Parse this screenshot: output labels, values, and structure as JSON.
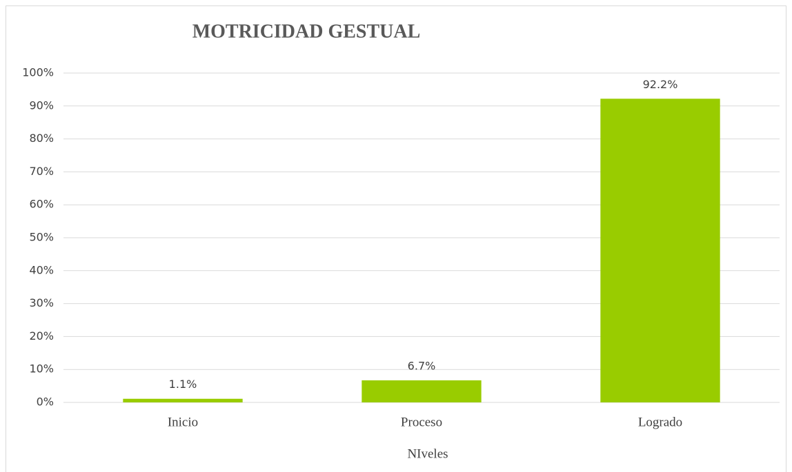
{
  "chart_data": {
    "type": "bar",
    "title": "MOTRICIDAD GESTUAL",
    "categories": [
      "Inicio",
      "Proceso",
      "Logrado"
    ],
    "values": [
      1.1,
      6.7,
      92.2
    ],
    "value_labels": [
      "1.1%",
      "6.7%",
      "92.2%"
    ],
    "color": "#99cc00",
    "x_label": "NIveles",
    "ylim": [
      0,
      100
    ],
    "yticks": [
      {
        "value": 0,
        "label": "0%"
      },
      {
        "value": 10,
        "label": "10%"
      },
      {
        "value": 20,
        "label": "20%"
      },
      {
        "value": 30,
        "label": "30%"
      },
      {
        "value": 40,
        "label": "40%"
      },
      {
        "value": 50,
        "label": "50%"
      },
      {
        "value": 60,
        "label": "60%"
      },
      {
        "value": 70,
        "label": "70%"
      },
      {
        "value": 80,
        "label": "80%"
      },
      {
        "value": 90,
        "label": "90%"
      },
      {
        "value": 100,
        "label": "100%"
      }
    ],
    "grid": true
  }
}
